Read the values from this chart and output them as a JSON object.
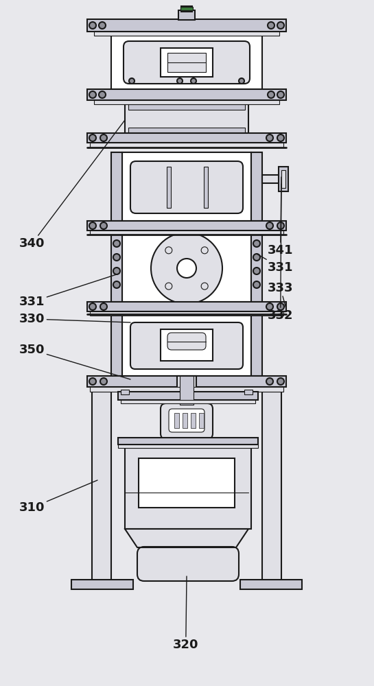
{
  "bg_color": "#e8e8ec",
  "lc": "#1a1a1a",
  "fill_white": "#ffffff",
  "fill_light": "#e0e0e6",
  "fill_mid": "#c8c8d4",
  "fill_dark": "#909098",
  "fill_green": "#3a7a3a",
  "lw_main": 1.5,
  "lw_thin": 0.8,
  "label_fs": 13,
  "label_fw": "bold"
}
